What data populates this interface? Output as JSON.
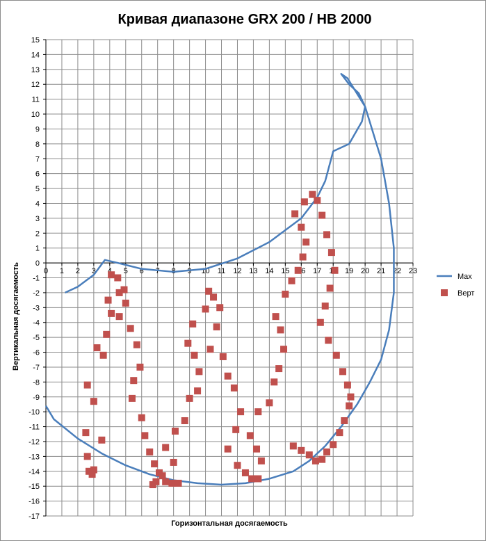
{
  "chart_data": {
    "type": "scatter",
    "title": "Кривая диапазоне GRX 200 / HB 2000",
    "xlabel": "Горизонтальная  досягаемость",
    "ylabel": "Вертикальная  досягаемость",
    "xlim": [
      0,
      23
    ],
    "ylim": [
      -17,
      15
    ],
    "grid": true,
    "legend_position": "right",
    "series": [
      {
        "name": "Max",
        "kind": "line",
        "color": "#4a7ebb",
        "x": [
          1.2,
          2.0,
          3.0,
          3.7,
          4.5,
          6.0,
          8.0,
          10.0,
          12.0,
          14.0,
          16.0,
          17.0,
          17.5,
          18.0,
          19.0,
          19.8,
          20.0,
          19.6,
          19.0,
          18.5,
          18.9,
          20.0,
          21.0,
          21.5,
          21.8,
          21.8,
          21.5,
          21.0,
          20.3,
          19.5,
          18.5,
          17.5,
          16.5,
          15.5,
          14.0,
          12.5,
          11.0,
          9.5,
          8.0,
          6.5,
          5.0,
          3.5,
          2.0,
          0.5,
          0.0
        ],
        "y": [
          -2.0,
          -1.6,
          -0.8,
          0.2,
          0.0,
          -0.4,
          -0.6,
          -0.4,
          0.3,
          1.4,
          3.0,
          4.4,
          5.5,
          7.5,
          8.0,
          9.5,
          10.5,
          11.4,
          12.0,
          12.7,
          12.4,
          10.5,
          7.0,
          4.0,
          1.0,
          -2.0,
          -4.5,
          -6.5,
          -8.0,
          -9.5,
          -11.0,
          -12.3,
          -13.3,
          -14.0,
          -14.5,
          -14.8,
          -14.9,
          -14.8,
          -14.6,
          -14.2,
          -13.6,
          -12.8,
          -11.8,
          -10.5,
          -9.6
        ]
      },
      {
        "name": "Верт",
        "kind": "points",
        "color": "#c0504d",
        "x": [
          3.0,
          2.9,
          2.7,
          2.6,
          2.5,
          3.5,
          3.0,
          2.6,
          3.6,
          3.2,
          3.8,
          4.1,
          3.9,
          4.6,
          4.5,
          4.1,
          4.9,
          5.0,
          4.6,
          5.3,
          5.7,
          5.9,
          5.5,
          5.4,
          6.0,
          6.2,
          6.5,
          6.8,
          7.1,
          6.9,
          6.7,
          7.3,
          7.5,
          7.9,
          8.3,
          8.0,
          7.5,
          8.1,
          8.7,
          9.0,
          9.5,
          9.6,
          9.3,
          8.9,
          9.2,
          10.0,
          10.2,
          10.5,
          10.9,
          10.7,
          10.3,
          11.1,
          11.4,
          11.8,
          12.2,
          11.9,
          11.4,
          12.0,
          12.5,
          12.9,
          13.3,
          13.5,
          13.2,
          12.8,
          13.3,
          14.0,
          14.3,
          14.6,
          14.9,
          14.7,
          14.4,
          15.0,
          15.4,
          15.8,
          16.1,
          16.3,
          16.0,
          15.6,
          16.2,
          16.7,
          17.0,
          17.3,
          17.6,
          17.9,
          18.1,
          17.8,
          17.5,
          17.2,
          17.7,
          18.2,
          18.6,
          18.9,
          19.1,
          19.0,
          18.7,
          18.4,
          18.0,
          17.6,
          17.3,
          16.9,
          16.5,
          16.0,
          15.5
        ],
        "y": [
          -13.9,
          -14.2,
          -14.0,
          -13.0,
          -11.4,
          -11.9,
          -9.3,
          -8.2,
          -6.2,
          -5.7,
          -4.8,
          -3.4,
          -2.5,
          -2.0,
          -1.0,
          -0.8,
          -1.8,
          -2.7,
          -3.6,
          -4.4,
          -5.5,
          -7.0,
          -7.9,
          -9.1,
          -10.4,
          -11.6,
          -12.7,
          -13.5,
          -14.1,
          -14.7,
          -14.9,
          -14.3,
          -14.7,
          -14.8,
          -14.8,
          -13.4,
          -12.4,
          -11.3,
          -10.6,
          -9.1,
          -8.6,
          -7.3,
          -6.2,
          -5.4,
          -4.1,
          -3.1,
          -1.9,
          -2.3,
          -3.0,
          -4.3,
          -5.8,
          -6.3,
          -7.6,
          -8.4,
          -10.0,
          -11.2,
          -12.5,
          -13.6,
          -14.1,
          -14.5,
          -14.5,
          -13.3,
          -12.5,
          -11.6,
          -10.0,
          -9.4,
          -8.0,
          -7.1,
          -5.8,
          -4.5,
          -3.6,
          -2.1,
          -1.2,
          -0.5,
          0.4,
          1.4,
          2.4,
          3.3,
          4.1,
          4.6,
          4.2,
          3.2,
          1.9,
          0.7,
          -0.5,
          -1.7,
          -2.9,
          -4.0,
          -5.2,
          -6.2,
          -7.3,
          -8.2,
          -9.0,
          -9.6,
          -10.6,
          -11.4,
          -12.2,
          -12.7,
          -13.2,
          -13.3,
          -12.9,
          -12.6,
          -12.3
        ]
      }
    ],
    "legend": [
      {
        "name": "Max",
        "marker": "line",
        "color": "#4a7ebb"
      },
      {
        "name": "Верт",
        "marker": "square",
        "color": "#c0504d"
      }
    ]
  }
}
